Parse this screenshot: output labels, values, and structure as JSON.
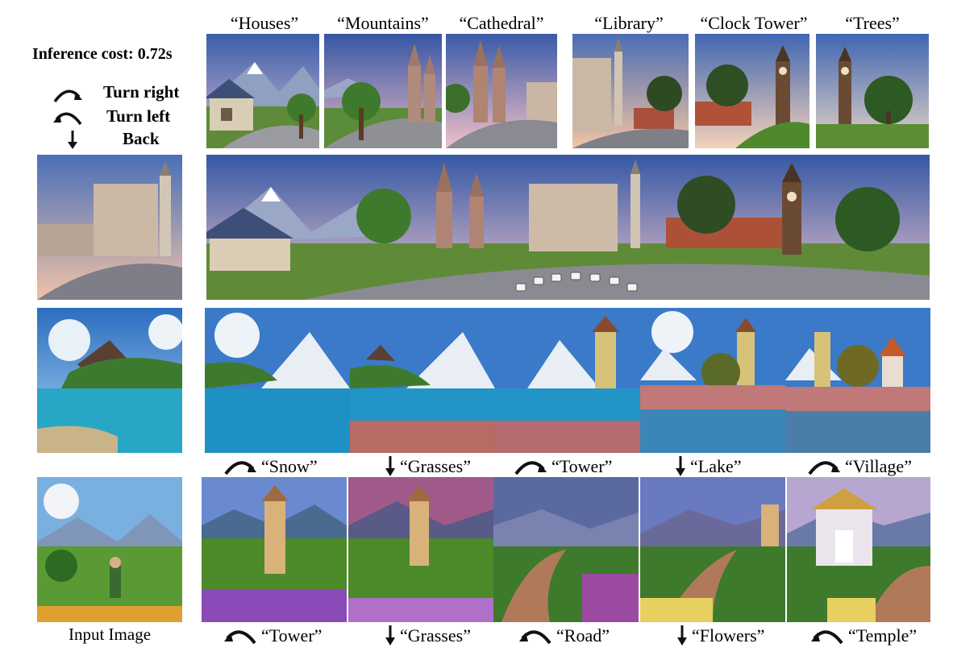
{
  "top_captions": [
    "“Houses”",
    "“Mountains”",
    "“Cathedral”",
    "“Library”",
    "“Clock Tower”",
    "“Trees”"
  ],
  "inference_cost": "Inference cost: 0.72s",
  "legend": {
    "turn_right": "Turn right",
    "turn_left": "Turn left",
    "back": "Back"
  },
  "row3_labels": [
    {
      "icon": "turn-right-icon",
      "text": "“Snow”"
    },
    {
      "icon": "down-arrow-icon",
      "text": "“Grasses”"
    },
    {
      "icon": "turn-right-icon",
      "text": "“Tower”"
    },
    {
      "icon": "down-arrow-icon",
      "text": "“Lake”"
    },
    {
      "icon": "turn-right-icon",
      "text": "“Village”"
    }
  ],
  "row4_labels": [
    {
      "icon": "turn-left-icon",
      "text": "“Tower”"
    },
    {
      "icon": "down-arrow-icon",
      "text": "“Grasses”"
    },
    {
      "icon": "turn-left-icon",
      "text": "“Road”"
    },
    {
      "icon": "down-arrow-icon",
      "text": "“Flowers”"
    },
    {
      "icon": "turn-left-icon",
      "text": "“Temple”"
    }
  ],
  "input_image_caption": "Input Image"
}
